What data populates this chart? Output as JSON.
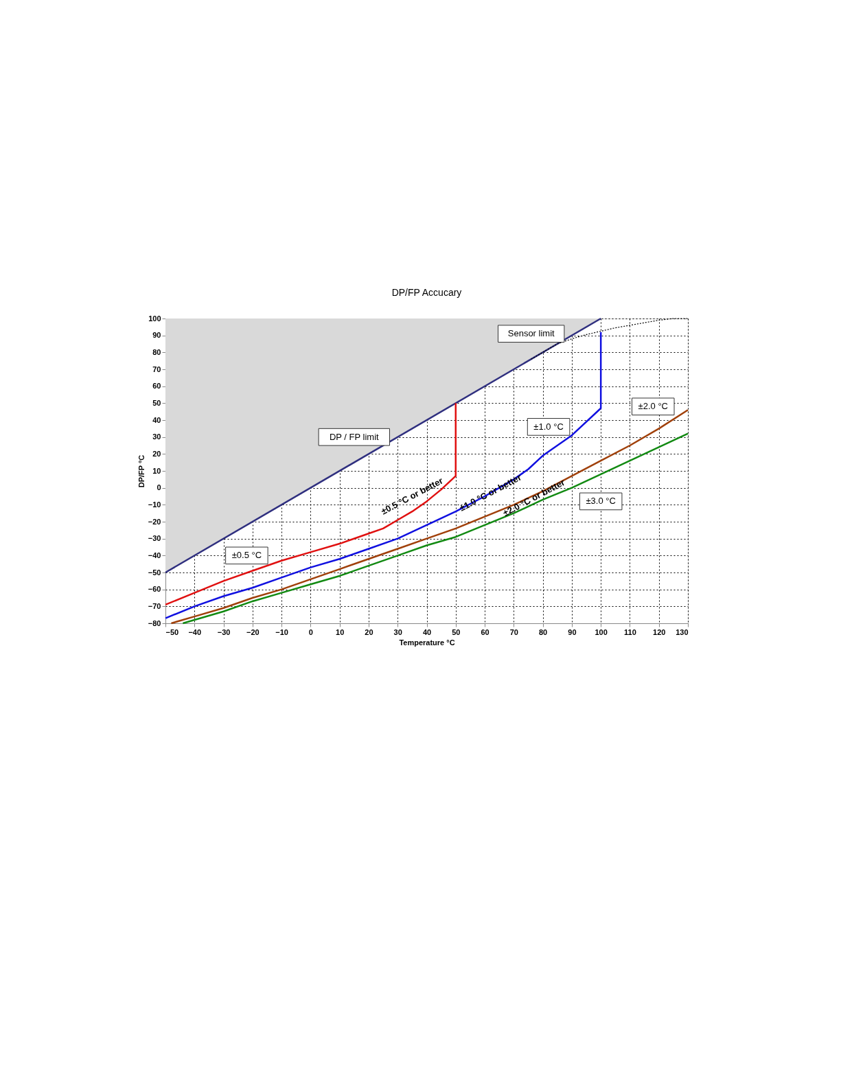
{
  "chart_data": {
    "type": "line",
    "title": "DP/FP Accucary",
    "xlabel": "Temperature °C",
    "ylabel": "DP/FP °C",
    "xlim": [
      -50,
      130
    ],
    "xticks": [
      -50,
      -40,
      -30,
      -20,
      -10,
      0,
      10,
      20,
      30,
      40,
      50,
      60,
      70,
      80,
      90,
      100,
      110,
      120,
      130
    ],
    "ylim": [
      -80,
      100
    ],
    "yticks": [
      -80,
      -70,
      -60,
      -50,
      -40,
      -30,
      -20,
      -10,
      0,
      10,
      20,
      30,
      40,
      50,
      60,
      70,
      80,
      90,
      100
    ],
    "grid": true,
    "legend": false,
    "marker": "none",
    "series": [
      {
        "name": "DP / FP limit",
        "color": "#2f2f7f",
        "x": [
          -50,
          100
        ],
        "values": [
          -50,
          100
        ],
        "lower": [
          -50,
          100
        ],
        "upper": [
          100,
          100
        ]
      },
      {
        "name": "Sensor limit",
        "color": "#000000",
        "line_style": "dotted",
        "x": [
          76,
          80,
          85,
          90,
          95,
          100,
          105,
          110,
          115,
          120,
          125,
          130
        ],
        "values": [
          76,
          80,
          85,
          88,
          90.5,
          92.5,
          94.5,
          96,
          97.5,
          99,
          100,
          100
        ]
      },
      {
        "name": "±0.5 °C",
        "color": "#e01010",
        "x": [
          -50,
          -40,
          -30,
          -20,
          -10,
          0,
          10,
          20,
          25,
          30,
          35,
          40,
          45,
          50,
          50
        ],
        "values": [
          -69,
          -62,
          -55,
          -49,
          -43,
          -38,
          -33,
          -27,
          -24,
          -19,
          -14,
          -8,
          -1,
          7,
          50
        ]
      },
      {
        "name": "±1.0 °C",
        "color": "#1010e0",
        "x": [
          -50,
          -40,
          -30,
          -20,
          -10,
          0,
          10,
          20,
          30,
          40,
          50,
          60,
          70,
          75,
          80,
          90,
          100,
          100
        ],
        "values": [
          -77,
          -70,
          -64,
          -59,
          -53,
          -47,
          -42,
          -36,
          -30,
          -22,
          -14,
          -5,
          5,
          11,
          19,
          31,
          47,
          92
        ]
      },
      {
        "name": "±2.0 °C",
        "color": "#a0400a",
        "x": [
          -48,
          -40,
          -30,
          -20,
          -10,
          0,
          10,
          20,
          30,
          40,
          50,
          60,
          70,
          80,
          90,
          100,
          110,
          120,
          130
        ],
        "values": [
          -80,
          -76,
          -71,
          -65,
          -60,
          -54,
          -48,
          -42,
          -36,
          -30,
          -24,
          -17,
          -10,
          -2,
          7,
          16,
          25,
          35,
          46
        ]
      },
      {
        "name": "±3.0 °C",
        "color": "#128a12",
        "x": [
          -44,
          -30,
          -20,
          -10,
          0,
          10,
          20,
          30,
          40,
          50,
          60,
          70,
          80,
          90,
          100,
          110,
          120,
          130
        ],
        "values": [
          -80,
          -73,
          -67,
          -62,
          -57,
          -52,
          -46,
          -40,
          -34,
          -29,
          -22,
          -15,
          -7,
          0,
          8,
          16,
          24,
          32
        ]
      }
    ],
    "annotations": [
      "±0.5 °C or better",
      "±1.0 °C or better",
      "±2.0 °C or better"
    ]
  }
}
